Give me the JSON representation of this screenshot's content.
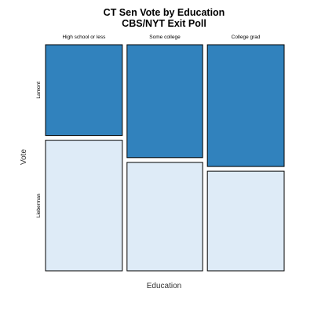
{
  "chart_data": {
    "type": "mosaic",
    "title": "CT Sen Vote by Education",
    "subtitle": "CBS/NYT Exit Poll",
    "xlabel": "Education",
    "ylabel": "Vote",
    "categories": [
      "High school or less",
      "Some college",
      "College grad"
    ],
    "column_share": [
      0.335,
      0.33,
      0.335
    ],
    "series": [
      {
        "name": "Lamont",
        "color": "#3182bd",
        "values": [
          0.41,
          0.51,
          0.55
        ]
      },
      {
        "name": "Lieberman",
        "color": "#deebf7",
        "values": [
          0.59,
          0.49,
          0.45
        ]
      }
    ]
  }
}
